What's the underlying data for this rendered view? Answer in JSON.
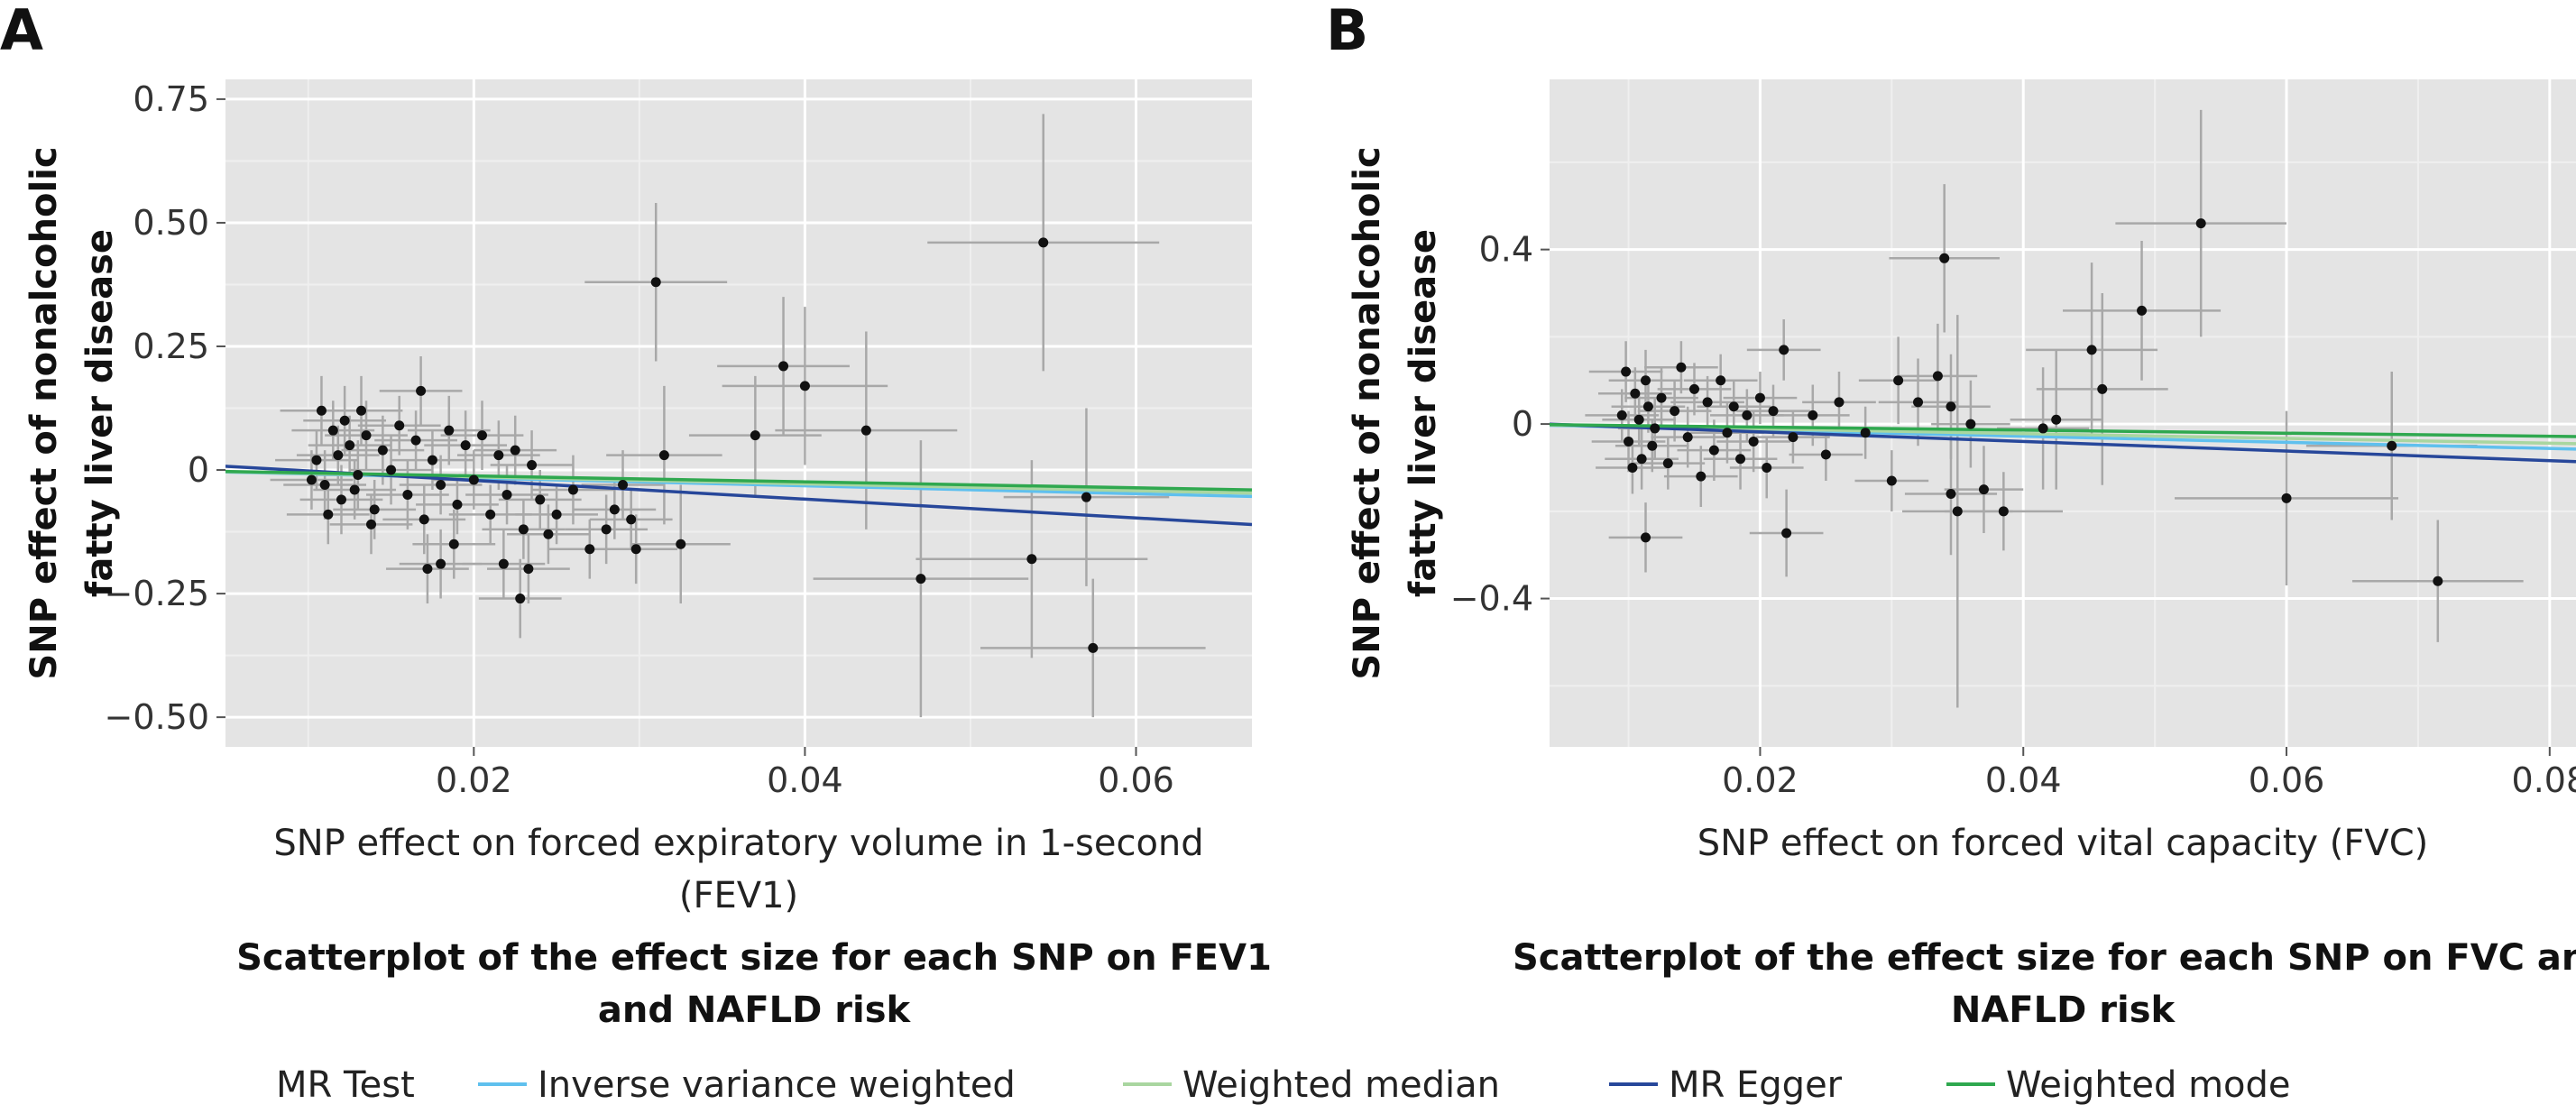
{
  "legend": {
    "title": "MR Test",
    "items": [
      {
        "label": "Inverse variance weighted",
        "color": "#5fc0ee"
      },
      {
        "label": "Weighted median",
        "color": "#a9d6a0"
      },
      {
        "label": "MR Egger",
        "color": "#27479a"
      },
      {
        "label": "Weighted mode",
        "color": "#2fa84f"
      }
    ]
  },
  "chart_data": [
    {
      "type": "scatter",
      "panel_label": "A",
      "xlabel_lines": [
        "SNP effect on forced expiratory volume in 1-second",
        "(FEV1)"
      ],
      "ylabel_lines": [
        "SNP effect of nonalcoholic",
        "fatty liver disease"
      ],
      "caption_lines": [
        "Scatterplot of the effect size for each SNP on FEV1",
        "and NAFLD risk"
      ],
      "xlim": [
        0.005,
        0.067
      ],
      "ylim": [
        -0.56,
        0.79
      ],
      "xticks": [
        0.02,
        0.04,
        0.06
      ],
      "xtick_labels": [
        "0.02",
        "0.04",
        "0.06"
      ],
      "yticks": [
        0.75,
        0.5,
        0.25,
        0,
        -0.25,
        -0.5
      ],
      "ytick_labels": [
        "0.75",
        "0.50",
        "0.25",
        "0",
        "−0.25",
        "−0.50"
      ],
      "grid": true,
      "lines": [
        {
          "method": "Inverse variance weighted",
          "slope": -0.8
        },
        {
          "method": "Weighted median",
          "slope": -0.7
        },
        {
          "method": "MR Egger",
          "slope": -1.9,
          "intercept": 0.017
        },
        {
          "method": "Weighted mode",
          "slope": -0.6
        }
      ],
      "points": [
        {
          "x": 0.0105,
          "y": 0.02,
          "xse": 0.0025,
          "yse": 0.06
        },
        {
          "x": 0.011,
          "y": -0.03,
          "xse": 0.0025,
          "yse": 0.07
        },
        {
          "x": 0.0115,
          "y": 0.08,
          "xse": 0.0025,
          "yse": 0.06
        },
        {
          "x": 0.012,
          "y": -0.06,
          "xse": 0.0025,
          "yse": 0.07
        },
        {
          "x": 0.0125,
          "y": 0.05,
          "xse": 0.0025,
          "yse": 0.06
        },
        {
          "x": 0.013,
          "y": -0.01,
          "xse": 0.0025,
          "yse": 0.07
        },
        {
          "x": 0.0108,
          "y": 0.12,
          "xse": 0.0025,
          "yse": 0.07
        },
        {
          "x": 0.0112,
          "y": -0.09,
          "xse": 0.0025,
          "yse": 0.06
        },
        {
          "x": 0.0118,
          "y": 0.03,
          "xse": 0.0025,
          "yse": 0.06
        },
        {
          "x": 0.0122,
          "y": 0.1,
          "xse": 0.0025,
          "yse": 0.07
        },
        {
          "x": 0.0128,
          "y": -0.04,
          "xse": 0.0025,
          "yse": 0.06
        },
        {
          "x": 0.0135,
          "y": 0.07,
          "xse": 0.0025,
          "yse": 0.07
        },
        {
          "x": 0.014,
          "y": -0.08,
          "xse": 0.0025,
          "yse": 0.06
        },
        {
          "x": 0.0145,
          "y": 0.04,
          "xse": 0.0025,
          "yse": 0.07
        },
        {
          "x": 0.0102,
          "y": -0.02,
          "xse": 0.0025,
          "yse": 0.06
        },
        {
          "x": 0.0132,
          "y": 0.12,
          "xse": 0.0025,
          "yse": 0.07
        },
        {
          "x": 0.0138,
          "y": -0.11,
          "xse": 0.0025,
          "yse": 0.06
        },
        {
          "x": 0.015,
          "y": 0.0,
          "xse": 0.0025,
          "yse": 0.07
        },
        {
          "x": 0.0155,
          "y": 0.09,
          "xse": 0.0025,
          "yse": 0.06
        },
        {
          "x": 0.016,
          "y": -0.05,
          "xse": 0.0025,
          "yse": 0.07
        },
        {
          "x": 0.0165,
          "y": 0.06,
          "xse": 0.0025,
          "yse": 0.06
        },
        {
          "x": 0.017,
          "y": -0.1,
          "xse": 0.0025,
          "yse": 0.07
        },
        {
          "x": 0.0175,
          "y": 0.02,
          "xse": 0.0025,
          "yse": 0.06
        },
        {
          "x": 0.0168,
          "y": 0.16,
          "xse": 0.0025,
          "yse": 0.07
        },
        {
          "x": 0.018,
          "y": -0.03,
          "xse": 0.0025,
          "yse": 0.06
        },
        {
          "x": 0.0185,
          "y": 0.08,
          "xse": 0.0025,
          "yse": 0.07
        },
        {
          "x": 0.019,
          "y": -0.07,
          "xse": 0.0025,
          "yse": 0.06
        },
        {
          "x": 0.0195,
          "y": 0.05,
          "xse": 0.0025,
          "yse": 0.07
        },
        {
          "x": 0.02,
          "y": -0.02,
          "xse": 0.0025,
          "yse": 0.06
        },
        {
          "x": 0.0205,
          "y": 0.07,
          "xse": 0.0025,
          "yse": 0.07
        },
        {
          "x": 0.021,
          "y": -0.09,
          "xse": 0.0025,
          "yse": 0.06
        },
        {
          "x": 0.0215,
          "y": 0.03,
          "xse": 0.0025,
          "yse": 0.07
        },
        {
          "x": 0.022,
          "y": -0.05,
          "xse": 0.0025,
          "yse": 0.06
        },
        {
          "x": 0.0225,
          "y": 0.04,
          "xse": 0.0025,
          "yse": 0.07
        },
        {
          "x": 0.023,
          "y": -0.12,
          "xse": 0.0025,
          "yse": 0.06
        },
        {
          "x": 0.0235,
          "y": 0.01,
          "xse": 0.0025,
          "yse": 0.07
        },
        {
          "x": 0.024,
          "y": -0.06,
          "xse": 0.0025,
          "yse": 0.06
        },
        {
          "x": 0.0188,
          "y": -0.15,
          "xse": 0.0025,
          "yse": 0.07
        },
        {
          "x": 0.018,
          "y": -0.19,
          "xse": 0.0025,
          "yse": 0.07
        },
        {
          "x": 0.0172,
          "y": -0.2,
          "xse": 0.0025,
          "yse": 0.07
        },
        {
          "x": 0.0218,
          "y": -0.19,
          "xse": 0.0025,
          "yse": 0.07
        },
        {
          "x": 0.0228,
          "y": -0.26,
          "xse": 0.0025,
          "yse": 0.08
        },
        {
          "x": 0.0233,
          "y": -0.2,
          "xse": 0.0025,
          "yse": 0.07
        },
        {
          "x": 0.0245,
          "y": -0.13,
          "xse": 0.0025,
          "yse": 0.06
        },
        {
          "x": 0.025,
          "y": -0.09,
          "xse": 0.0025,
          "yse": 0.06
        },
        {
          "x": 0.026,
          "y": -0.04,
          "xse": 0.0025,
          "yse": 0.07
        },
        {
          "x": 0.027,
          "y": -0.16,
          "xse": 0.0025,
          "yse": 0.06
        },
        {
          "x": 0.028,
          "y": -0.12,
          "xse": 0.0025,
          "yse": 0.07
        },
        {
          "x": 0.0285,
          "y": -0.08,
          "xse": 0.0025,
          "yse": 0.06
        },
        {
          "x": 0.029,
          "y": -0.03,
          "xse": 0.0025,
          "yse": 0.07
        },
        {
          "x": 0.0295,
          "y": -0.1,
          "xse": 0.0025,
          "yse": 0.06
        },
        {
          "x": 0.0298,
          "y": -0.16,
          "xse": 0.0025,
          "yse": 0.07
        },
        {
          "x": 0.031,
          "y": 0.38,
          "xse": 0.0043,
          "yse": 0.16
        },
        {
          "x": 0.0315,
          "y": 0.03,
          "xse": 0.0035,
          "yse": 0.14
        },
        {
          "x": 0.0325,
          "y": -0.15,
          "xse": 0.003,
          "yse": 0.12
        },
        {
          "x": 0.037,
          "y": 0.07,
          "xse": 0.004,
          "yse": 0.12
        },
        {
          "x": 0.0387,
          "y": 0.21,
          "xse": 0.004,
          "yse": 0.14
        },
        {
          "x": 0.04,
          "y": 0.17,
          "xse": 0.005,
          "yse": 0.16
        },
        {
          "x": 0.0437,
          "y": 0.08,
          "xse": 0.0055,
          "yse": 0.2
        },
        {
          "x": 0.047,
          "y": -0.22,
          "xse": 0.0065,
          "yse": 0.28
        },
        {
          "x": 0.0544,
          "y": 0.46,
          "xse": 0.007,
          "yse": 0.26
        },
        {
          "x": 0.0537,
          "y": -0.18,
          "xse": 0.007,
          "yse": 0.2
        },
        {
          "x": 0.057,
          "y": -0.055,
          "xse": 0.005,
          "yse": 0.18
        },
        {
          "x": 0.0574,
          "y": -0.36,
          "xse": 0.0068,
          "yse": 0.14
        }
      ]
    },
    {
      "type": "scatter",
      "panel_label": "B",
      "xlabel_lines": [
        "SNP effect on forced vital capacity (FVC)"
      ],
      "ylabel_lines": [
        "SNP effect of nonalcoholic",
        "fatty liver disease"
      ],
      "caption_lines": [
        "Scatterplot of the effect size for each SNP on FVC and",
        "NAFLD risk"
      ],
      "xlim": [
        0.004,
        0.082
      ],
      "ylim": [
        -0.74,
        0.79
      ],
      "xticks": [
        0.02,
        0.04,
        0.06,
        0.08
      ],
      "xtick_labels": [
        "0.02",
        "0.04",
        "0.06",
        "0.08"
      ],
      "yticks": [
        0.4,
        0,
        -0.4
      ],
      "ytick_labels": [
        "0.4",
        "0",
        "−0.4"
      ],
      "grid": true,
      "lines": [
        {
          "method": "Inverse variance weighted",
          "slope": -0.7
        },
        {
          "method": "Weighted median",
          "slope": -0.55
        },
        {
          "method": "MR Egger",
          "slope": -1.1,
          "intercept": 0.004
        },
        {
          "method": "Weighted mode",
          "slope": -0.35
        }
      ],
      "points": [
        {
          "x": 0.0095,
          "y": 0.02,
          "xse": 0.0028,
          "yse": 0.06
        },
        {
          "x": 0.01,
          "y": -0.04,
          "xse": 0.0028,
          "yse": 0.07
        },
        {
          "x": 0.0105,
          "y": 0.07,
          "xse": 0.0028,
          "yse": 0.06
        },
        {
          "x": 0.011,
          "y": -0.08,
          "xse": 0.0028,
          "yse": 0.07
        },
        {
          "x": 0.0115,
          "y": 0.04,
          "xse": 0.0028,
          "yse": 0.06
        },
        {
          "x": 0.012,
          "y": -0.01,
          "xse": 0.0028,
          "yse": 0.07
        },
        {
          "x": 0.0098,
          "y": 0.12,
          "xse": 0.0028,
          "yse": 0.07
        },
        {
          "x": 0.0103,
          "y": -0.1,
          "xse": 0.0028,
          "yse": 0.06
        },
        {
          "x": 0.0108,
          "y": 0.01,
          "xse": 0.0028,
          "yse": 0.06
        },
        {
          "x": 0.0113,
          "y": 0.1,
          "xse": 0.0028,
          "yse": 0.07
        },
        {
          "x": 0.0118,
          "y": -0.05,
          "xse": 0.0028,
          "yse": 0.06
        },
        {
          "x": 0.0125,
          "y": 0.06,
          "xse": 0.0028,
          "yse": 0.07
        },
        {
          "x": 0.013,
          "y": -0.09,
          "xse": 0.0028,
          "yse": 0.06
        },
        {
          "x": 0.0135,
          "y": 0.03,
          "xse": 0.0028,
          "yse": 0.07
        },
        {
          "x": 0.014,
          "y": 0.13,
          "xse": 0.0028,
          "yse": 0.06
        },
        {
          "x": 0.0145,
          "y": -0.03,
          "xse": 0.0028,
          "yse": 0.07
        },
        {
          "x": 0.015,
          "y": 0.08,
          "xse": 0.0028,
          "yse": 0.06
        },
        {
          "x": 0.0155,
          "y": -0.12,
          "xse": 0.0028,
          "yse": 0.07
        },
        {
          "x": 0.016,
          "y": 0.05,
          "xse": 0.0028,
          "yse": 0.06
        },
        {
          "x": 0.0165,
          "y": -0.06,
          "xse": 0.0028,
          "yse": 0.07
        },
        {
          "x": 0.017,
          "y": 0.1,
          "xse": 0.0028,
          "yse": 0.06
        },
        {
          "x": 0.0175,
          "y": -0.02,
          "xse": 0.0028,
          "yse": 0.07
        },
        {
          "x": 0.018,
          "y": 0.04,
          "xse": 0.0028,
          "yse": 0.06
        },
        {
          "x": 0.0185,
          "y": -0.08,
          "xse": 0.0028,
          "yse": 0.07
        },
        {
          "x": 0.019,
          "y": 0.02,
          "xse": 0.0028,
          "yse": 0.06
        },
        {
          "x": 0.0195,
          "y": -0.04,
          "xse": 0.0028,
          "yse": 0.07
        },
        {
          "x": 0.02,
          "y": 0.06,
          "xse": 0.0028,
          "yse": 0.06
        },
        {
          "x": 0.0205,
          "y": -0.1,
          "xse": 0.0028,
          "yse": 0.07
        },
        {
          "x": 0.021,
          "y": 0.03,
          "xse": 0.0028,
          "yse": 0.06
        },
        {
          "x": 0.0218,
          "y": 0.17,
          "xse": 0.0028,
          "yse": 0.07
        },
        {
          "x": 0.0225,
          "y": -0.03,
          "xse": 0.0028,
          "yse": 0.06
        },
        {
          "x": 0.024,
          "y": 0.02,
          "xse": 0.0028,
          "yse": 0.07
        },
        {
          "x": 0.025,
          "y": -0.07,
          "xse": 0.0028,
          "yse": 0.06
        },
        {
          "x": 0.026,
          "y": 0.05,
          "xse": 0.0028,
          "yse": 0.07
        },
        {
          "x": 0.028,
          "y": -0.02,
          "xse": 0.0028,
          "yse": 0.06
        },
        {
          "x": 0.03,
          "y": -0.13,
          "xse": 0.0028,
          "yse": 0.07
        },
        {
          "x": 0.0113,
          "y": -0.26,
          "xse": 0.0028,
          "yse": 0.08
        },
        {
          "x": 0.022,
          "y": -0.25,
          "xse": 0.0028,
          "yse": 0.1
        },
        {
          "x": 0.0305,
          "y": 0.1,
          "xse": 0.003,
          "yse": 0.1
        },
        {
          "x": 0.032,
          "y": 0.05,
          "xse": 0.003,
          "yse": 0.1
        },
        {
          "x": 0.034,
          "y": 0.38,
          "xse": 0.0042,
          "yse": 0.17
        },
        {
          "x": 0.0335,
          "y": 0.11,
          "xse": 0.003,
          "yse": 0.12
        },
        {
          "x": 0.0345,
          "y": -0.16,
          "xse": 0.0035,
          "yse": 0.14
        },
        {
          "x": 0.035,
          "y": -0.2,
          "xse": 0.0042,
          "yse": 0.45
        },
        {
          "x": 0.036,
          "y": 0.0,
          "xse": 0.003,
          "yse": 0.1
        },
        {
          "x": 0.037,
          "y": -0.15,
          "xse": 0.003,
          "yse": 0.1
        },
        {
          "x": 0.0385,
          "y": -0.2,
          "xse": 0.0045,
          "yse": 0.09
        },
        {
          "x": 0.0345,
          "y": 0.04,
          "xse": 0.003,
          "yse": 0.12
        },
        {
          "x": 0.0415,
          "y": -0.01,
          "xse": 0.0035,
          "yse": 0.14
        },
        {
          "x": 0.0425,
          "y": 0.01,
          "xse": 0.0035,
          "yse": 0.16
        },
        {
          "x": 0.0452,
          "y": 0.17,
          "xse": 0.005,
          "yse": 0.2
        },
        {
          "x": 0.046,
          "y": 0.08,
          "xse": 0.005,
          "yse": 0.22
        },
        {
          "x": 0.049,
          "y": 0.26,
          "xse": 0.006,
          "yse": 0.16
        },
        {
          "x": 0.0535,
          "y": 0.46,
          "xse": 0.0065,
          "yse": 0.26
        },
        {
          "x": 0.06,
          "y": -0.17,
          "xse": 0.0085,
          "yse": 0.2
        },
        {
          "x": 0.068,
          "y": -0.05,
          "xse": 0.0065,
          "yse": 0.17
        },
        {
          "x": 0.0715,
          "y": -0.36,
          "xse": 0.0065,
          "yse": 0.14
        }
      ]
    }
  ]
}
